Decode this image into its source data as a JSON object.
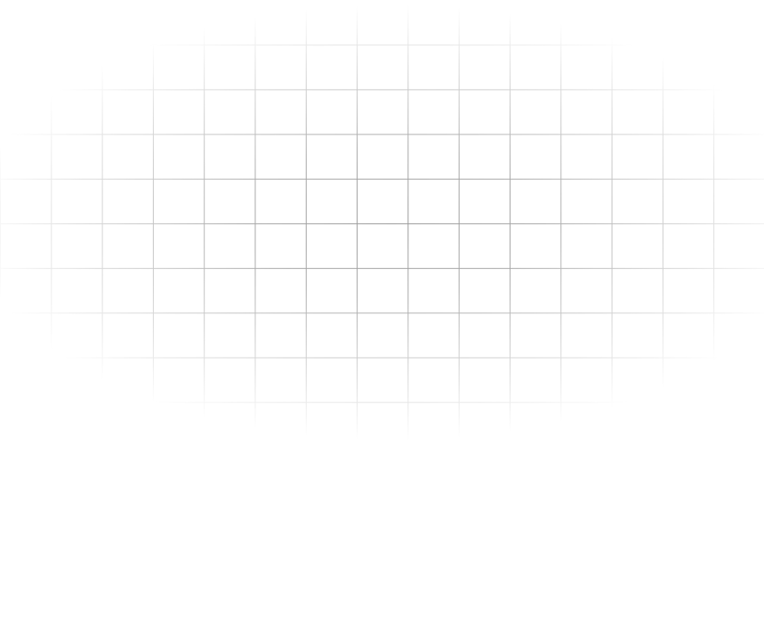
{
  "background": {
    "color": "#ffffff",
    "grid_color": "#9a9a9a",
    "pattern": "fading-grid"
  }
}
